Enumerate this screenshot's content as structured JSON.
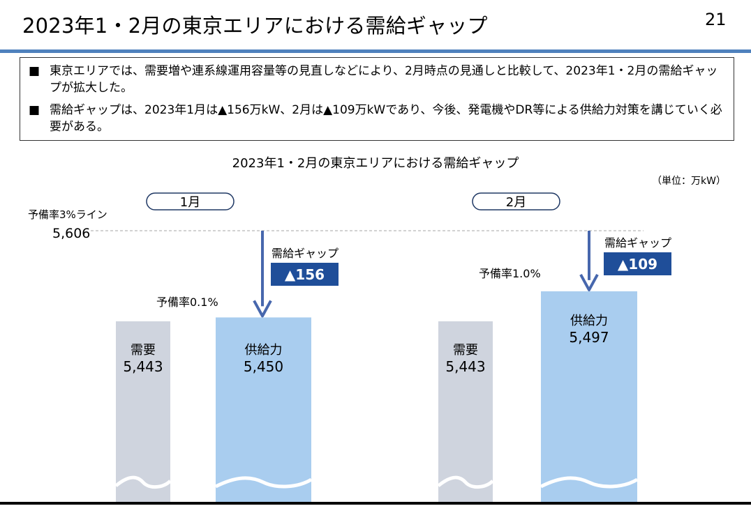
{
  "slide": {
    "title": "2023年1・2月の東京エリアにおける需給ギャップ",
    "page_number": "21"
  },
  "summary": {
    "bullet_mark": "■",
    "bullets": [
      "東京エリアでは、需要増や連系線運用容量等の見直しなどにより、2月時点の見通しと比較して、2023年1・2月の需給ギャップが拡大した。",
      "需給ギャップは、2023年1月は▲156万kW、2月は▲109万kWであり、今後、発電機やDR等による供給力対策を講じていく必要がある。"
    ]
  },
  "colors": {
    "demand": "#cfd4de",
    "supply": "#a9cdef",
    "arrow": "#4767ad",
    "gap_badge": "#1f4e99",
    "title_rule": "#4f81bd"
  },
  "chart_data": {
    "type": "bar",
    "title": "2023年1・2月の東京エリアにおける需給ギャップ",
    "unit": "（単位：万kW）",
    "reference_line": {
      "label": "予備率3%ライン",
      "value": 5606,
      "value_label": "5,606"
    },
    "panels": [
      {
        "month": "1月",
        "demand": {
          "label": "需要",
          "value": 5443,
          "value_label": "5,443"
        },
        "supply": {
          "label": "供給力",
          "value": 5450,
          "value_label": "5,450"
        },
        "reserve_rate": "予備率0.1%",
        "gap": {
          "label": "需給ギャップ",
          "value": -156,
          "value_label": "▲156"
        }
      },
      {
        "month": "2月",
        "demand": {
          "label": "需要",
          "value": 5443,
          "value_label": "5,443"
        },
        "supply": {
          "label": "供給力",
          "value": 5497,
          "value_label": "5,497"
        },
        "reserve_rate": "予備率1.0%",
        "gap": {
          "label": "需給ギャップ",
          "value": -109,
          "value_label": "▲109"
        }
      }
    ]
  }
}
